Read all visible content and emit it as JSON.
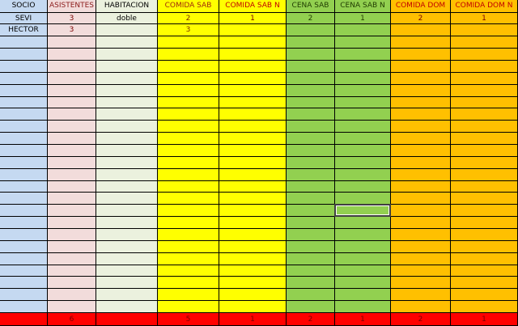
{
  "sheet": {
    "headers": [
      "SOCIO",
      "ASISTENTES",
      "HABITACION",
      "COMIDA SAB",
      "COMIDA SAB N",
      "CENA SAB",
      "CENA SAB N",
      "COMIDA DOM",
      "COMIDA DOM N"
    ],
    "rows": [
      [
        "SEVI",
        3,
        "doble",
        2,
        1,
        2,
        1,
        2,
        1
      ],
      [
        "HECTOR",
        3,
        null,
        3,
        null,
        null,
        null,
        null,
        null
      ]
    ],
    "totals": [
      null,
      6,
      null,
      5,
      1,
      2,
      1,
      2,
      1
    ]
  }
}
